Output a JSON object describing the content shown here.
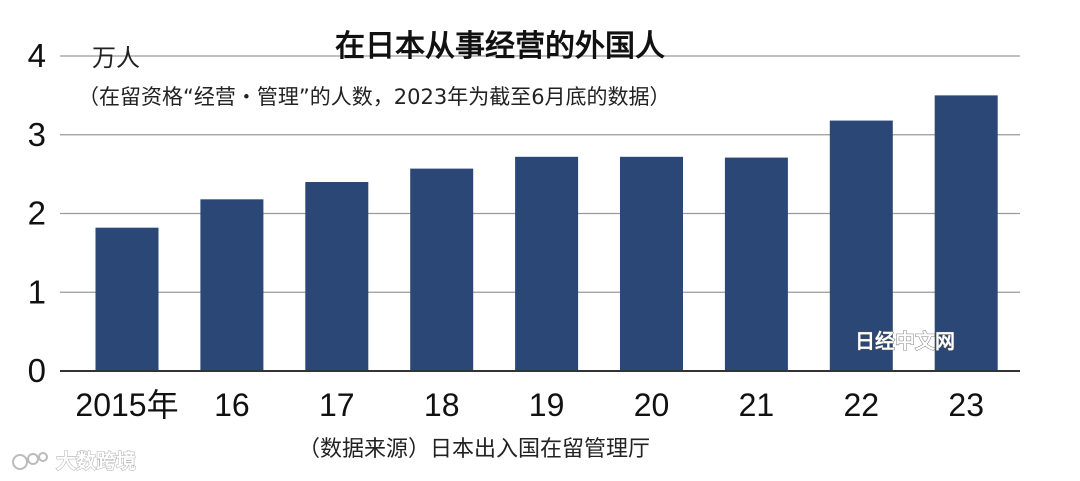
{
  "chart_data": {
    "type": "bar",
    "title": "在日本从事经营的外国人",
    "subtitle": "（在留资格“经营・管理”的人数，2023年为截至6月底的数据）",
    "unit_label": "万人",
    "categories": [
      "2015年",
      "16",
      "17",
      "18",
      "19",
      "20",
      "21",
      "22",
      "23"
    ],
    "values": [
      1.82,
      2.18,
      2.4,
      2.57,
      2.72,
      2.72,
      2.71,
      3.18,
      3.5
    ],
    "ylim": [
      0,
      4
    ],
    "yticks": [
      "0",
      "1",
      "2",
      "3",
      "4"
    ],
    "grid": true,
    "bar_color": "#2b4775",
    "source": "（数据来源）日本出入国在留管理厅",
    "credit": "日经中文网"
  },
  "watermark": "大数跨境"
}
